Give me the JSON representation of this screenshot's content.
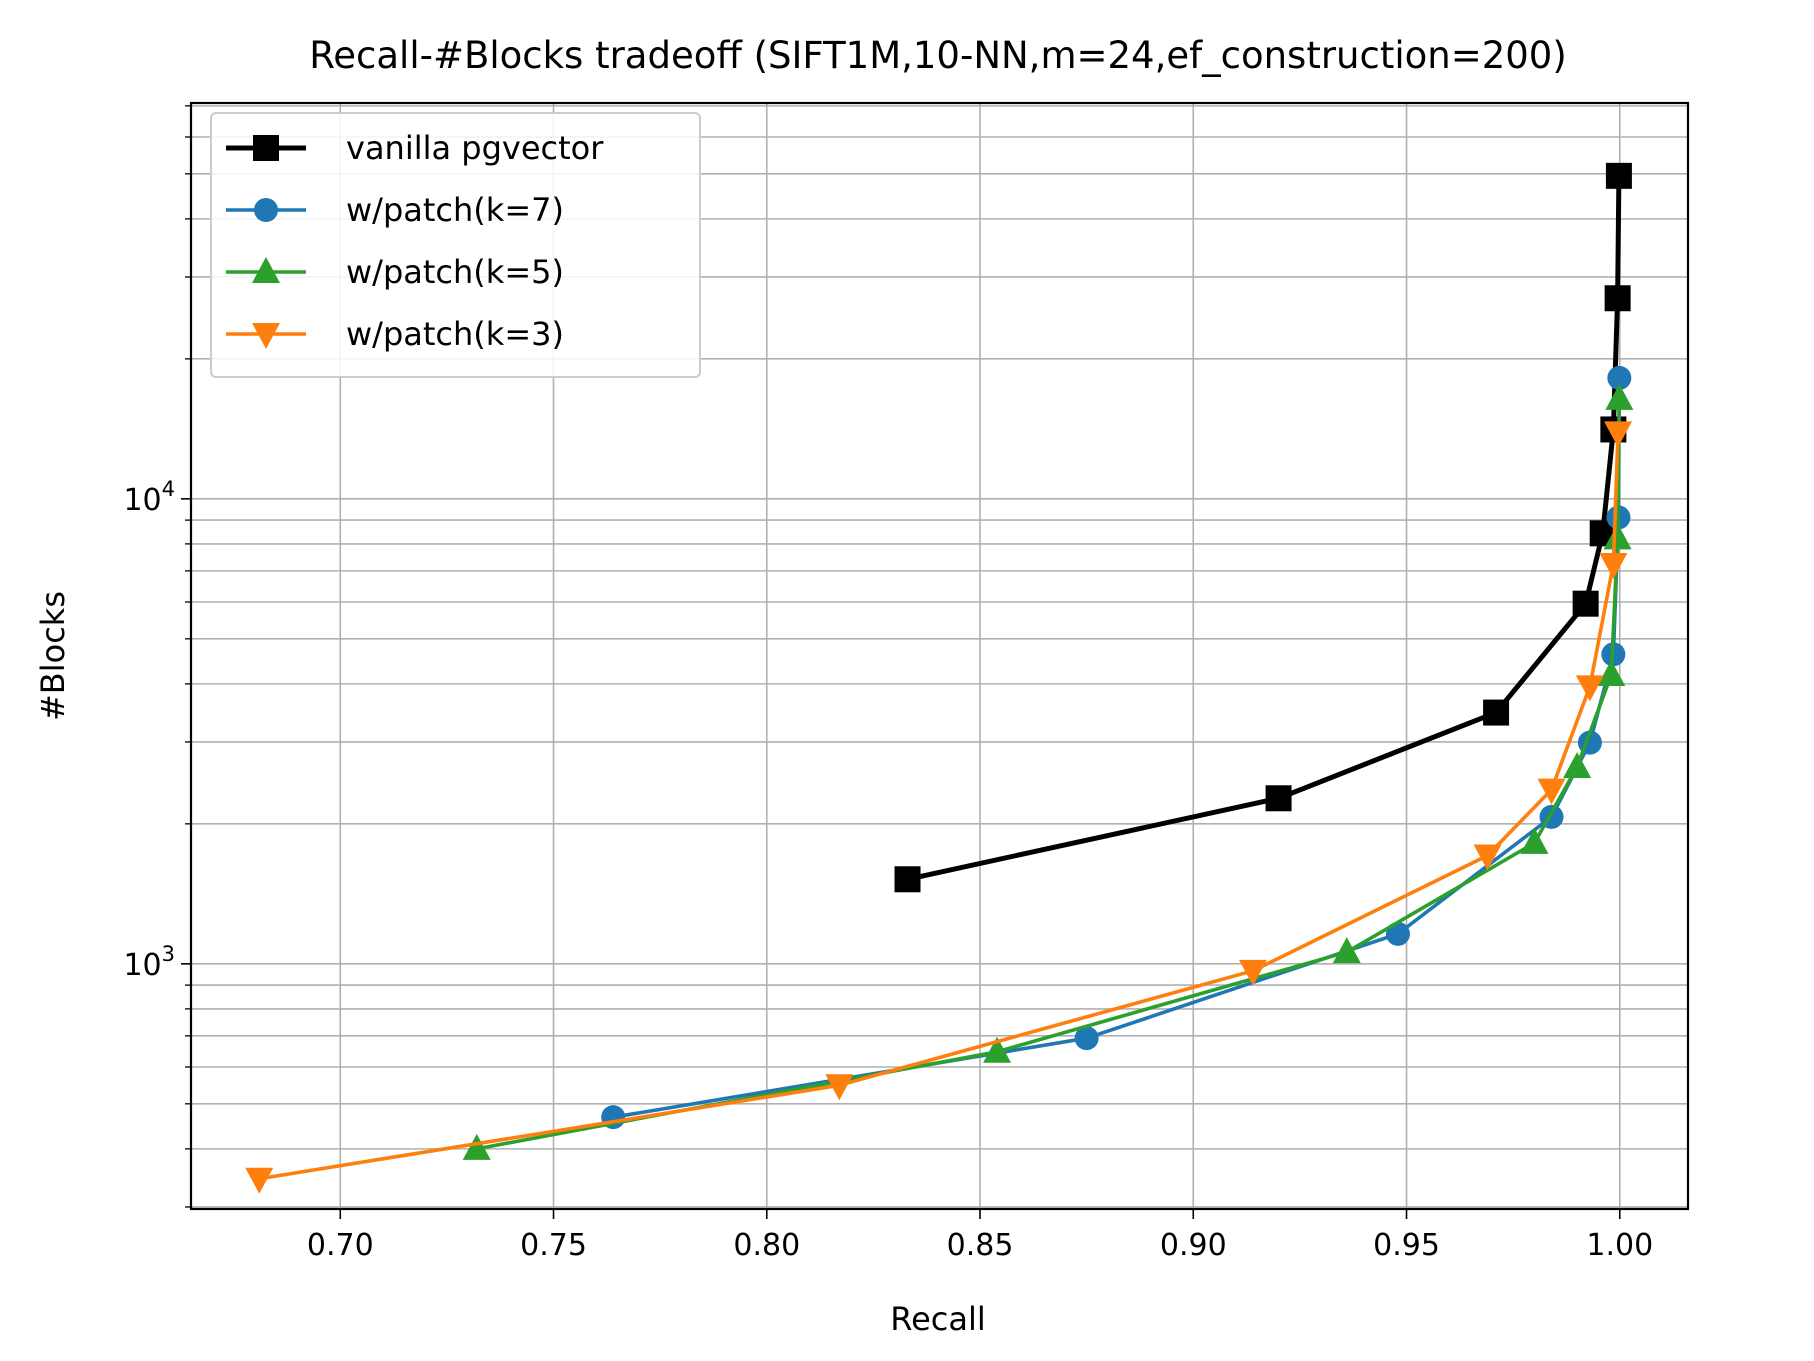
{
  "chart_data": {
    "type": "line",
    "title": "Recall-#Blocks tradeoff (SIFT1M,10-NN,m=24,ef_construction=200)",
    "xlabel": "Recall",
    "ylabel": "#Blocks",
    "xlim": [
      0.665,
      1.016
    ],
    "ylim": [
      297,
      71000
    ],
    "yscale": "log",
    "grid": true,
    "legend_position": "top-left",
    "xticks": [
      {
        "value": 0.7,
        "label": "0.70"
      },
      {
        "value": 0.75,
        "label": "0.75"
      },
      {
        "value": 0.8,
        "label": "0.80"
      },
      {
        "value": 0.85,
        "label": "0.85"
      },
      {
        "value": 0.9,
        "label": "0.90"
      },
      {
        "value": 0.95,
        "label": "0.95"
      },
      {
        "value": 1.0,
        "label": "1.00"
      }
    ],
    "yticks_major": [
      {
        "value": 1000,
        "base": "10",
        "exp": "3"
      },
      {
        "value": 10000,
        "base": "10",
        "exp": "4"
      }
    ],
    "series": [
      {
        "name": "vanilla pgvector",
        "color": "#000000",
        "marker": "square",
        "x": [
          0.833,
          0.92,
          0.971,
          0.992,
          0.996,
          0.9985,
          0.9995,
          0.9998
        ],
        "y": [
          1520,
          2270,
          3470,
          5950,
          8430,
          14100,
          27000,
          49500
        ]
      },
      {
        "name": "w/patch(k=7)",
        "color": "#1f77b4",
        "marker": "circle",
        "x": [
          0.764,
          0.875,
          0.948,
          0.984,
          0.993,
          0.9985,
          0.9997,
          0.9999
        ],
        "y": [
          468,
          692,
          1160,
          2070,
          2990,
          4630,
          9120,
          18200
        ]
      },
      {
        "name": "w/patch(k=5)",
        "color": "#2ca02c",
        "marker": "triangle-up",
        "x": [
          0.732,
          0.854,
          0.936,
          0.98,
          0.99,
          0.998,
          0.9995,
          0.9999
        ],
        "y": [
          400,
          647,
          1060,
          1820,
          2650,
          4180,
          8220,
          16400
        ]
      },
      {
        "name": "w/patch(k=3)",
        "color": "#ff7f0e",
        "marker": "triangle-down",
        "x": [
          0.681,
          0.817,
          0.914,
          0.969,
          0.984,
          0.993,
          0.9985,
          0.9996
        ],
        "y": [
          345,
          548,
          966,
          1710,
          2370,
          3950,
          7240,
          13900
        ]
      }
    ]
  }
}
